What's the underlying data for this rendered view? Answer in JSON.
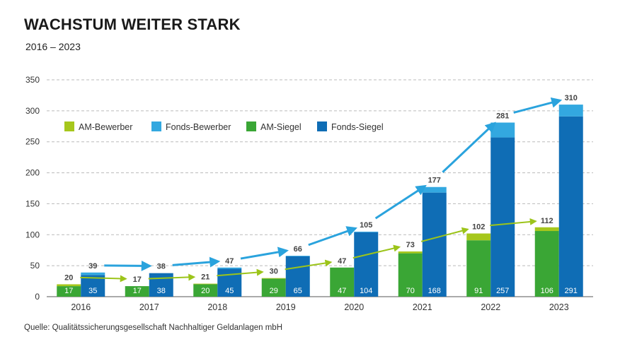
{
  "title": "WACHSTUM WEITER STARK",
  "subtitle": "2016 – 2023",
  "source": "Quelle: Qualitätssicherungsgesellschaft Nachhaltiger Geldanlagen mbH",
  "colors": {
    "am_bewerber": "#a6c71c",
    "fonds_bewerber": "#33a8e0",
    "am_siegel": "#3aa635",
    "fonds_siegel": "#0f6db5",
    "arrow_blue": "#2aa3dd",
    "arrow_green": "#9cc41a",
    "grid": "#bbbbbb"
  },
  "chart_data": {
    "type": "bar",
    "title": "WACHSTUM WEITER STARK",
    "subtitle": "2016 – 2023",
    "categories": [
      "2016",
      "2017",
      "2018",
      "2019",
      "2020",
      "2021",
      "2022",
      "2023"
    ],
    "ylim": [
      0,
      350
    ],
    "yticks": [
      0,
      50,
      100,
      150,
      200,
      250,
      300,
      350
    ],
    "grid": true,
    "legend_position": "top-left",
    "series": [
      {
        "name": "AM-Bewerber",
        "group": "AM",
        "values": [
          3,
          0,
          1,
          1,
          0,
          3,
          11,
          6
        ]
      },
      {
        "name": "Fonds-Bewerber",
        "group": "Fonds",
        "values": [
          4,
          0,
          2,
          1,
          1,
          9,
          24,
          19
        ]
      },
      {
        "name": "AM-Siegel",
        "group": "AM",
        "values": [
          17,
          17,
          20,
          29,
          47,
          70,
          91,
          106
        ]
      },
      {
        "name": "Fonds-Siegel",
        "group": "Fonds",
        "values": [
          35,
          38,
          45,
          65,
          104,
          168,
          257,
          291
        ]
      }
    ],
    "am_totals": [
      20,
      17,
      21,
      30,
      47,
      73,
      102,
      112
    ],
    "fonds_totals": [
      39,
      38,
      47,
      66,
      105,
      177,
      281,
      310
    ]
  }
}
